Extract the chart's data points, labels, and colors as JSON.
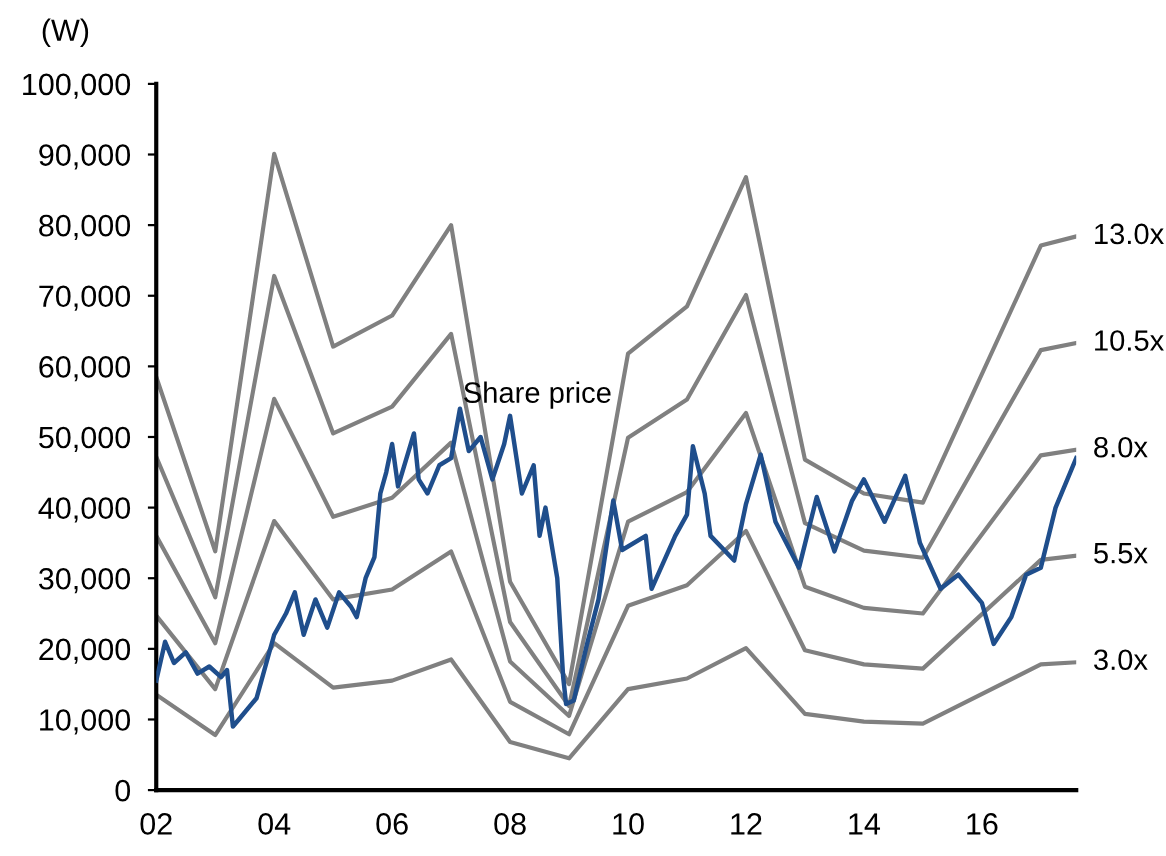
{
  "chart_data": {
    "type": "line",
    "ylabel": "(W)",
    "xlim": [
      2002,
      2017.6
    ],
    "ylim": [
      0,
      100000
    ],
    "xticks": [
      {
        "value": 2002,
        "label": "02"
      },
      {
        "value": 2004,
        "label": "04"
      },
      {
        "value": 2006,
        "label": "06"
      },
      {
        "value": 2008,
        "label": "08"
      },
      {
        "value": 2010,
        "label": "10"
      },
      {
        "value": 2012,
        "label": "12"
      },
      {
        "value": 2014,
        "label": "14"
      },
      {
        "value": 2016,
        "label": "16"
      }
    ],
    "yticks": [
      {
        "value": 0,
        "label": "0"
      },
      {
        "value": 10000,
        "label": "10,000"
      },
      {
        "value": 20000,
        "label": "20,000"
      },
      {
        "value": 30000,
        "label": "30,000"
      },
      {
        "value": 40000,
        "label": "40,000"
      },
      {
        "value": 50000,
        "label": "50,000"
      },
      {
        "value": 60000,
        "label": "60,000"
      },
      {
        "value": 70000,
        "label": "70,000"
      },
      {
        "value": 80000,
        "label": "80,000"
      },
      {
        "value": 90000,
        "label": "90,000"
      },
      {
        "value": 100000,
        "label": "100,000"
      }
    ],
    "grid": false,
    "marker": "none",
    "line_style": "solid",
    "series": [
      {
        "name": "Share price",
        "color": "#1f4e8c",
        "x": [
          2002.0,
          2002.15,
          2002.3,
          2002.5,
          2002.7,
          2002.9,
          2003.1,
          2003.2,
          2003.3,
          2003.4,
          2003.7,
          2004.0,
          2004.2,
          2004.35,
          2004.5,
          2004.7,
          2004.9,
          2005.1,
          2005.3,
          2005.4,
          2005.55,
          2005.7,
          2005.8,
          2005.9,
          2006.0,
          2006.1,
          2006.37,
          2006.45,
          2006.6,
          2006.8,
          2007.0,
          2007.15,
          2007.3,
          2007.5,
          2007.7,
          2007.9,
          2008.0,
          2008.2,
          2008.4,
          2008.5,
          2008.6,
          2008.8,
          2008.9,
          2008.95,
          2009.08,
          2009.3,
          2009.5,
          2009.75,
          2009.9,
          2010.3,
          2010.4,
          2010.8,
          2011.0,
          2011.1,
          2011.3,
          2011.4,
          2011.8,
          2012.0,
          2012.25,
          2012.5,
          2012.9,
          2013.2,
          2013.5,
          2013.8,
          2014.0,
          2014.35,
          2014.7,
          2014.95,
          2015.3,
          2015.6,
          2016.0,
          2016.2,
          2016.5,
          2016.75,
          2017.0,
          2017.25,
          2017.6
        ],
        "values": [
          15500,
          21000,
          18000,
          19500,
          16500,
          17500,
          16000,
          17000,
          9000,
          10000,
          13000,
          22000,
          25000,
          28000,
          22000,
          27000,
          23000,
          28000,
          26000,
          24500,
          30000,
          33000,
          42000,
          45000,
          49000,
          43000,
          50500,
          44000,
          42000,
          46000,
          47000,
          54000,
          48000,
          50000,
          44000,
          49000,
          53000,
          42000,
          46000,
          36000,
          40000,
          30000,
          16000,
          12200,
          12700,
          20500,
          27000,
          41000,
          34000,
          36000,
          28500,
          36000,
          39000,
          48700,
          42000,
          36000,
          32500,
          40500,
          47500,
          38000,
          31500,
          41500,
          33800,
          41000,
          44000,
          38000,
          44500,
          35000,
          28500,
          30500,
          26500,
          20700,
          24500,
          30500,
          31500,
          40000,
          47000
        ]
      },
      {
        "name": "13.0x",
        "color": "#808080",
        "x": [
          2002,
          2003,
          2004,
          2005,
          2006,
          2007,
          2008,
          2009,
          2010,
          2011,
          2012,
          2013,
          2014,
          2015,
          2017,
          2017.6
        ],
        "values": [
          58500,
          33800,
          90100,
          62800,
          67200,
          80000,
          29500,
          15000,
          61800,
          68500,
          86800,
          46800,
          42000,
          40700,
          77100,
          78400
        ]
      },
      {
        "name": "10.5x",
        "color": "#808080",
        "x": [
          2002,
          2003,
          2004,
          2005,
          2006,
          2007,
          2008,
          2009,
          2010,
          2011,
          2012,
          2013,
          2014,
          2015,
          2017,
          2017.6
        ],
        "values": [
          47200,
          27300,
          72800,
          50500,
          54300,
          64600,
          23800,
          11900,
          49900,
          55300,
          70100,
          37800,
          33900,
          32900,
          62300,
          63300
        ]
      },
      {
        "name": "8.0x",
        "color": "#808080",
        "x": [
          2002,
          2003,
          2004,
          2005,
          2006,
          2007,
          2008,
          2009,
          2010,
          2011,
          2012,
          2013,
          2014,
          2015,
          2017,
          2017.6
        ],
        "values": [
          36000,
          20800,
          55400,
          38700,
          41400,
          49200,
          18200,
          10500,
          38000,
          42200,
          53400,
          28800,
          25800,
          25000,
          47400,
          48200
        ]
      },
      {
        "name": "5.5x",
        "color": "#808080",
        "x": [
          2002,
          2003,
          2004,
          2005,
          2006,
          2007,
          2008,
          2009,
          2010,
          2011,
          2012,
          2013,
          2014,
          2015,
          2017,
          2017.6
        ],
        "values": [
          24700,
          14300,
          38100,
          27000,
          28400,
          33800,
          12500,
          7900,
          26100,
          29000,
          36700,
          19800,
          17800,
          17200,
          32600,
          33200
        ]
      },
      {
        "name": "3.0x",
        "color": "#808080",
        "x": [
          2002,
          2003,
          2004,
          2005,
          2006,
          2007,
          2008,
          2009,
          2010,
          2011,
          2012,
          2013,
          2014,
          2015,
          2017,
          2017.6
        ],
        "values": [
          13500,
          7800,
          20800,
          14500,
          15500,
          18500,
          6800,
          4500,
          14300,
          15800,
          20100,
          10800,
          9700,
          9400,
          17800,
          18100
        ]
      }
    ]
  }
}
